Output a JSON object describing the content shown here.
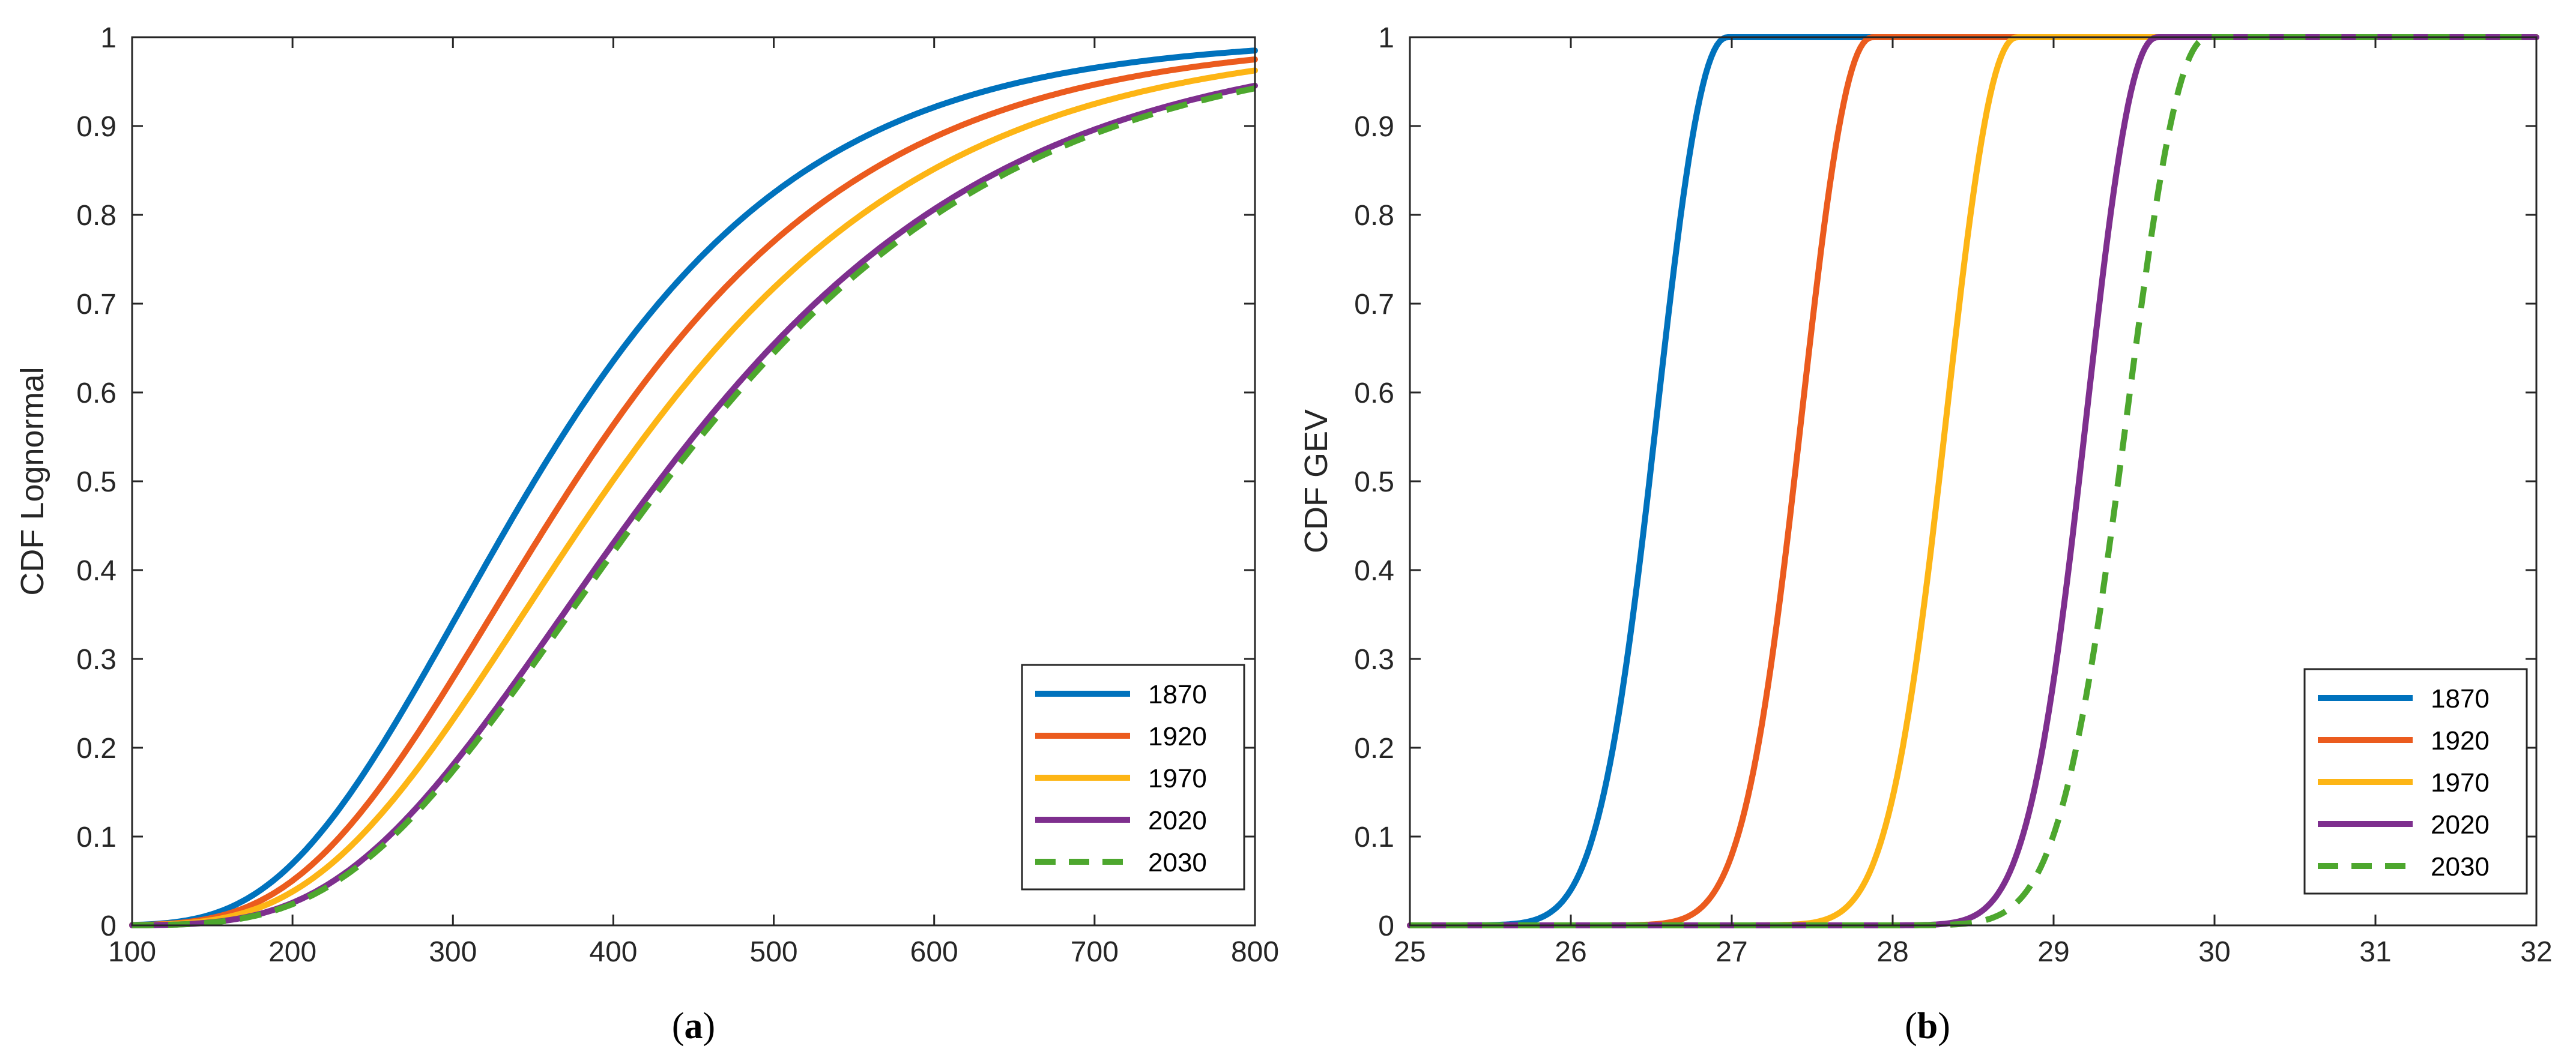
{
  "chart_data": [
    {
      "type": "line",
      "panel_label": "a",
      "caption": {
        "open": "(",
        "letter": "a",
        "close": ")"
      },
      "title": "",
      "xlabel": "",
      "ylabel": "CDF Lognormal",
      "xlim": [
        100,
        800
      ],
      "ylim": [
        0,
        1
      ],
      "xticks": [
        "100",
        "200",
        "300",
        "400",
        "500",
        "600",
        "700",
        "800"
      ],
      "yticks": [
        "0",
        "0.1",
        "0.2",
        "0.3",
        "0.4",
        "0.5",
        "0.6",
        "0.7",
        "0.8",
        "0.9",
        "1"
      ],
      "grid": false,
      "legend_position": "bottom-right",
      "distribution": "lognormal",
      "x": [
        100,
        125,
        150,
        175,
        200,
        225,
        250,
        275,
        300,
        325,
        350,
        375,
        400,
        425,
        450,
        475,
        500,
        525,
        550,
        575,
        600,
        625,
        650,
        675,
        700,
        725,
        750,
        775,
        800
      ],
      "series": [
        {
          "name": "1870",
          "color": "#0072BD",
          "dashed": false,
          "params": [
            5.86,
            0.38
          ],
          "values": [
            0.0,
            0.002,
            0.009,
            0.025,
            0.049,
            0.087,
            0.142,
            0.21,
            0.286,
            0.363,
            0.44,
            0.515,
            0.588,
            0.655,
            0.713,
            0.762,
            0.803,
            0.838,
            0.868,
            0.893,
            0.913,
            0.929,
            0.942,
            0.952,
            0.961,
            0.968,
            0.974,
            0.979,
            0.983
          ]
        },
        {
          "name": "1920",
          "color": "#EB5B1E",
          "dashed": false,
          "params": [
            5.93,
            0.385
          ],
          "values": [
            0.0,
            0.001,
            0.006,
            0.018,
            0.037,
            0.066,
            0.108,
            0.163,
            0.228,
            0.298,
            0.37,
            0.442,
            0.512,
            0.58,
            0.641,
            0.696,
            0.744,
            0.786,
            0.821,
            0.851,
            0.875,
            0.895,
            0.912,
            0.926,
            0.938,
            0.948,
            0.957,
            0.964,
            0.97
          ]
        },
        {
          "name": "1970",
          "color": "#FDB515",
          "dashed": false,
          "params": [
            5.99,
            0.39
          ],
          "values": [
            0.0,
            0.001,
            0.004,
            0.013,
            0.028,
            0.052,
            0.086,
            0.132,
            0.187,
            0.249,
            0.314,
            0.381,
            0.447,
            0.512,
            0.574,
            0.632,
            0.684,
            0.73,
            0.77,
            0.805,
            0.835,
            0.861,
            0.883,
            0.901,
            0.917,
            0.93,
            0.941,
            0.95,
            0.958
          ]
        },
        {
          "name": "2020",
          "color": "#7E2F8E",
          "dashed": false,
          "params": [
            6.06,
            0.39
          ],
          "values": [
            0.0,
            0.001,
            0.003,
            0.009,
            0.02,
            0.038,
            0.065,
            0.101,
            0.146,
            0.198,
            0.256,
            0.317,
            0.378,
            0.439,
            0.498,
            0.555,
            0.609,
            0.658,
            0.702,
            0.742,
            0.777,
            0.807,
            0.834,
            0.857,
            0.877,
            0.894,
            0.909,
            0.921,
            0.932
          ]
        },
        {
          "name": "2030",
          "color": "#4DA72E",
          "dashed": true,
          "params": [
            6.07,
            0.39
          ],
          "values": [
            0.0,
            0.001,
            0.003,
            0.008,
            0.018,
            0.035,
            0.06,
            0.094,
            0.137,
            0.187,
            0.243,
            0.302,
            0.362,
            0.423,
            0.482,
            0.539,
            0.593,
            0.643,
            0.689,
            0.729,
            0.765,
            0.797,
            0.824,
            0.848,
            0.869,
            0.887,
            0.902,
            0.915,
            0.927
          ]
        }
      ]
    },
    {
      "type": "line",
      "panel_label": "b",
      "caption": {
        "open": "(",
        "letter": "b",
        "close": ")"
      },
      "title": "",
      "xlabel": "",
      "ylabel": "CDF GEV",
      "xlim": [
        25,
        32
      ],
      "ylim": [
        0,
        1
      ],
      "xticks": [
        "25",
        "26",
        "27",
        "28",
        "29",
        "30",
        "31",
        "32"
      ],
      "yticks": [
        "0",
        "0.1",
        "0.2",
        "0.3",
        "0.4",
        "0.5",
        "0.6",
        "0.7",
        "0.8",
        "0.9",
        "1"
      ],
      "grid": false,
      "legend_position": "bottom-right",
      "distribution": "gev",
      "x": [
        25.0,
        25.25,
        25.5,
        25.75,
        26.0,
        26.25,
        26.5,
        26.75,
        27.0,
        27.25,
        27.5,
        27.75,
        28.0,
        28.25,
        28.5,
        28.75,
        29.0,
        29.25,
        29.5,
        29.75,
        30.0,
        30.25,
        30.5,
        30.75,
        31.0,
        31.25,
        31.5,
        31.75,
        32.0
      ],
      "series": [
        {
          "name": "1870",
          "color": "#0072BD",
          "dashed": false,
          "params": [
            26.4,
            0.26,
            -0.45
          ],
          "values": [
            0.0,
            0.0,
            0.0,
            0.021,
            0.162,
            0.421,
            0.672,
            0.844,
            0.937,
            0.978,
            0.994,
            0.999,
            1.0,
            1.0,
            1.0,
            1.0,
            1.0,
            1.0,
            1.0,
            1.0,
            1.0,
            1.0,
            1.0,
            1.0,
            1.0,
            1.0,
            1.0,
            1.0,
            1.0
          ]
        },
        {
          "name": "1920",
          "color": "#EB5B1E",
          "dashed": false,
          "params": [
            27.3,
            0.26,
            -0.45
          ],
          "values": [
            0.0,
            0.0,
            0.0,
            0.0,
            0.0,
            0.0,
            0.0,
            0.006,
            0.108,
            0.339,
            0.599,
            0.797,
            0.912,
            0.968,
            0.991,
            0.998,
            1.0,
            1.0,
            1.0,
            1.0,
            1.0,
            1.0,
            1.0,
            1.0,
            1.0,
            1.0,
            1.0,
            1.0,
            1.0
          ]
        },
        {
          "name": "1970",
          "color": "#FDB515",
          "dashed": false,
          "params": [
            28.2,
            0.26,
            -0.45
          ],
          "values": [
            0.0,
            0.0,
            0.0,
            0.0,
            0.0,
            0.0,
            0.0,
            0.0,
            0.0,
            0.0,
            0.0,
            0.061,
            0.262,
            0.52,
            0.741,
            0.879,
            0.953,
            0.985,
            0.996,
            0.999,
            1.0,
            1.0,
            1.0,
            1.0,
            1.0,
            1.0,
            1.0,
            1.0,
            1.0
          ]
        },
        {
          "name": "2020",
          "color": "#7E2F8E",
          "dashed": false,
          "params": [
            29.07,
            0.26,
            -0.45
          ],
          "values": [
            0.0,
            0.0,
            0.0,
            0.0,
            0.0,
            0.0,
            0.0,
            0.0,
            0.0,
            0.0,
            0.0,
            0.0,
            0.0,
            0.0,
            0.0,
            0.0,
            0.182,
            0.446,
            0.692,
            0.856,
            0.944,
            0.981,
            0.995,
            0.999,
            1.0,
            1.0,
            1.0,
            1.0,
            1.0
          ]
        },
        {
          "name": "2030",
          "color": "#4DA72E",
          "dashed": true,
          "params": [
            29.3,
            0.3,
            -0.45
          ],
          "values": [
            0.0,
            0.0,
            0.0,
            0.0,
            0.0,
            0.0,
            0.0,
            0.0,
            0.0,
            0.0,
            0.0,
            0.0,
            0.0,
            0.0,
            0.0,
            0.0,
            0.0,
            0.196,
            0.497,
            0.76,
            0.908,
            0.97,
            0.992,
            0.998,
            1.0,
            1.0,
            1.0,
            1.0,
            1.0
          ]
        }
      ]
    }
  ]
}
